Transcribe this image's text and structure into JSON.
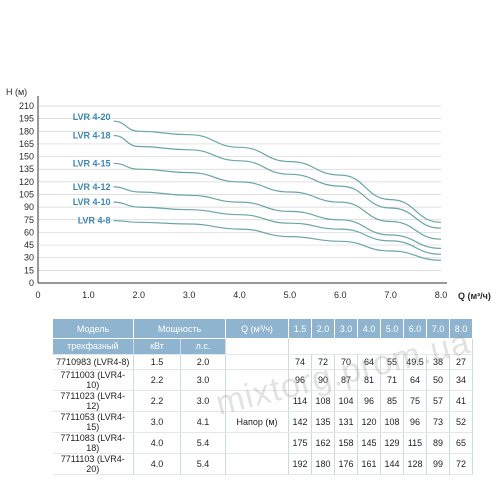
{
  "chart_data": {
    "type": "line",
    "y_axis_title": "H (м)",
    "x_axis_title": "Q (м³/ч)",
    "xlim": [
      0,
      8.0
    ],
    "ylim": [
      0,
      210
    ],
    "x_ticks": [
      "0",
      "1.0",
      "2.0",
      "3.0",
      "4.0",
      "5.0",
      "6.0",
      "7.0",
      "8.0"
    ],
    "y_ticks": [
      "0",
      "15",
      "30",
      "45",
      "60",
      "75",
      "90",
      "105",
      "120",
      "135",
      "150",
      "165",
      "180",
      "195",
      "210"
    ],
    "grid": "horizontal",
    "line_color": "#6aa7a3",
    "label_color": "#3b87b3",
    "x": [
      1.5,
      2.0,
      3.0,
      4.0,
      5.0,
      6.0,
      7.0,
      8.0
    ],
    "series": [
      {
        "name": "LVR 4-20",
        "values": [
          192,
          180,
          176,
          161,
          144,
          128,
          99,
          72
        ]
      },
      {
        "name": "LVR 4-18",
        "values": [
          175,
          162,
          158,
          145,
          129,
          115,
          89,
          65
        ]
      },
      {
        "name": "LVR 4-15",
        "values": [
          142,
          135,
          131,
          120,
          108,
          96,
          73,
          52
        ]
      },
      {
        "name": "LVR 4-12",
        "values": [
          114,
          108,
          104,
          96,
          85,
          75,
          57,
          41
        ]
      },
      {
        "name": "LVR 4-10",
        "values": [
          96,
          90,
          87,
          81,
          71,
          64,
          50,
          34
        ]
      },
      {
        "name": "LVR 4-8",
        "values": [
          74,
          72,
          70,
          64,
          55,
          49.5,
          38,
          27
        ]
      }
    ]
  },
  "table": {
    "header_model": "Модель",
    "header_power": "Мощность",
    "header_q": "Q (м³/ч)",
    "sub_model": "трехфазный",
    "sub_kw": "кВт",
    "sub_hp": "л.с.",
    "head_label": "Напор (м)",
    "q_values": [
      "1.5",
      "2.0",
      "3.0",
      "4.0",
      "5.0",
      "6.0",
      "7.0",
      "8.0"
    ],
    "rows": [
      {
        "model": "7710983 (LVR4-8)",
        "kw": "1.5",
        "hp": "2.0",
        "vals": [
          "74",
          "72",
          "70",
          "64",
          "55",
          "49.5",
          "38",
          "27"
        ]
      },
      {
        "model": "7711003 (LVR4-10)",
        "kw": "2.2",
        "hp": "3.0",
        "vals": [
          "96",
          "90",
          "87",
          "81",
          "71",
          "64",
          "50",
          "34"
        ]
      },
      {
        "model": "7711023 (LVR4-12)",
        "kw": "2.2",
        "hp": "3.0",
        "vals": [
          "114",
          "108",
          "104",
          "96",
          "85",
          "75",
          "57",
          "41"
        ]
      },
      {
        "model": "7711053 (LVR4-15)",
        "kw": "3.0",
        "hp": "4.1",
        "vals": [
          "142",
          "135",
          "131",
          "120",
          "108",
          "96",
          "73",
          "52"
        ]
      },
      {
        "model": "7711083 (LVR4-18)",
        "kw": "4.0",
        "hp": "5.4",
        "vals": [
          "175",
          "162",
          "158",
          "145",
          "129",
          "115",
          "89",
          "65"
        ]
      },
      {
        "model": "7711103 (LVR4-20)",
        "kw": "4.0",
        "hp": "5.4",
        "vals": [
          "192",
          "180",
          "176",
          "161",
          "144",
          "128",
          "99",
          "72"
        ]
      }
    ]
  },
  "watermark": "mixtorg.prom.ua"
}
